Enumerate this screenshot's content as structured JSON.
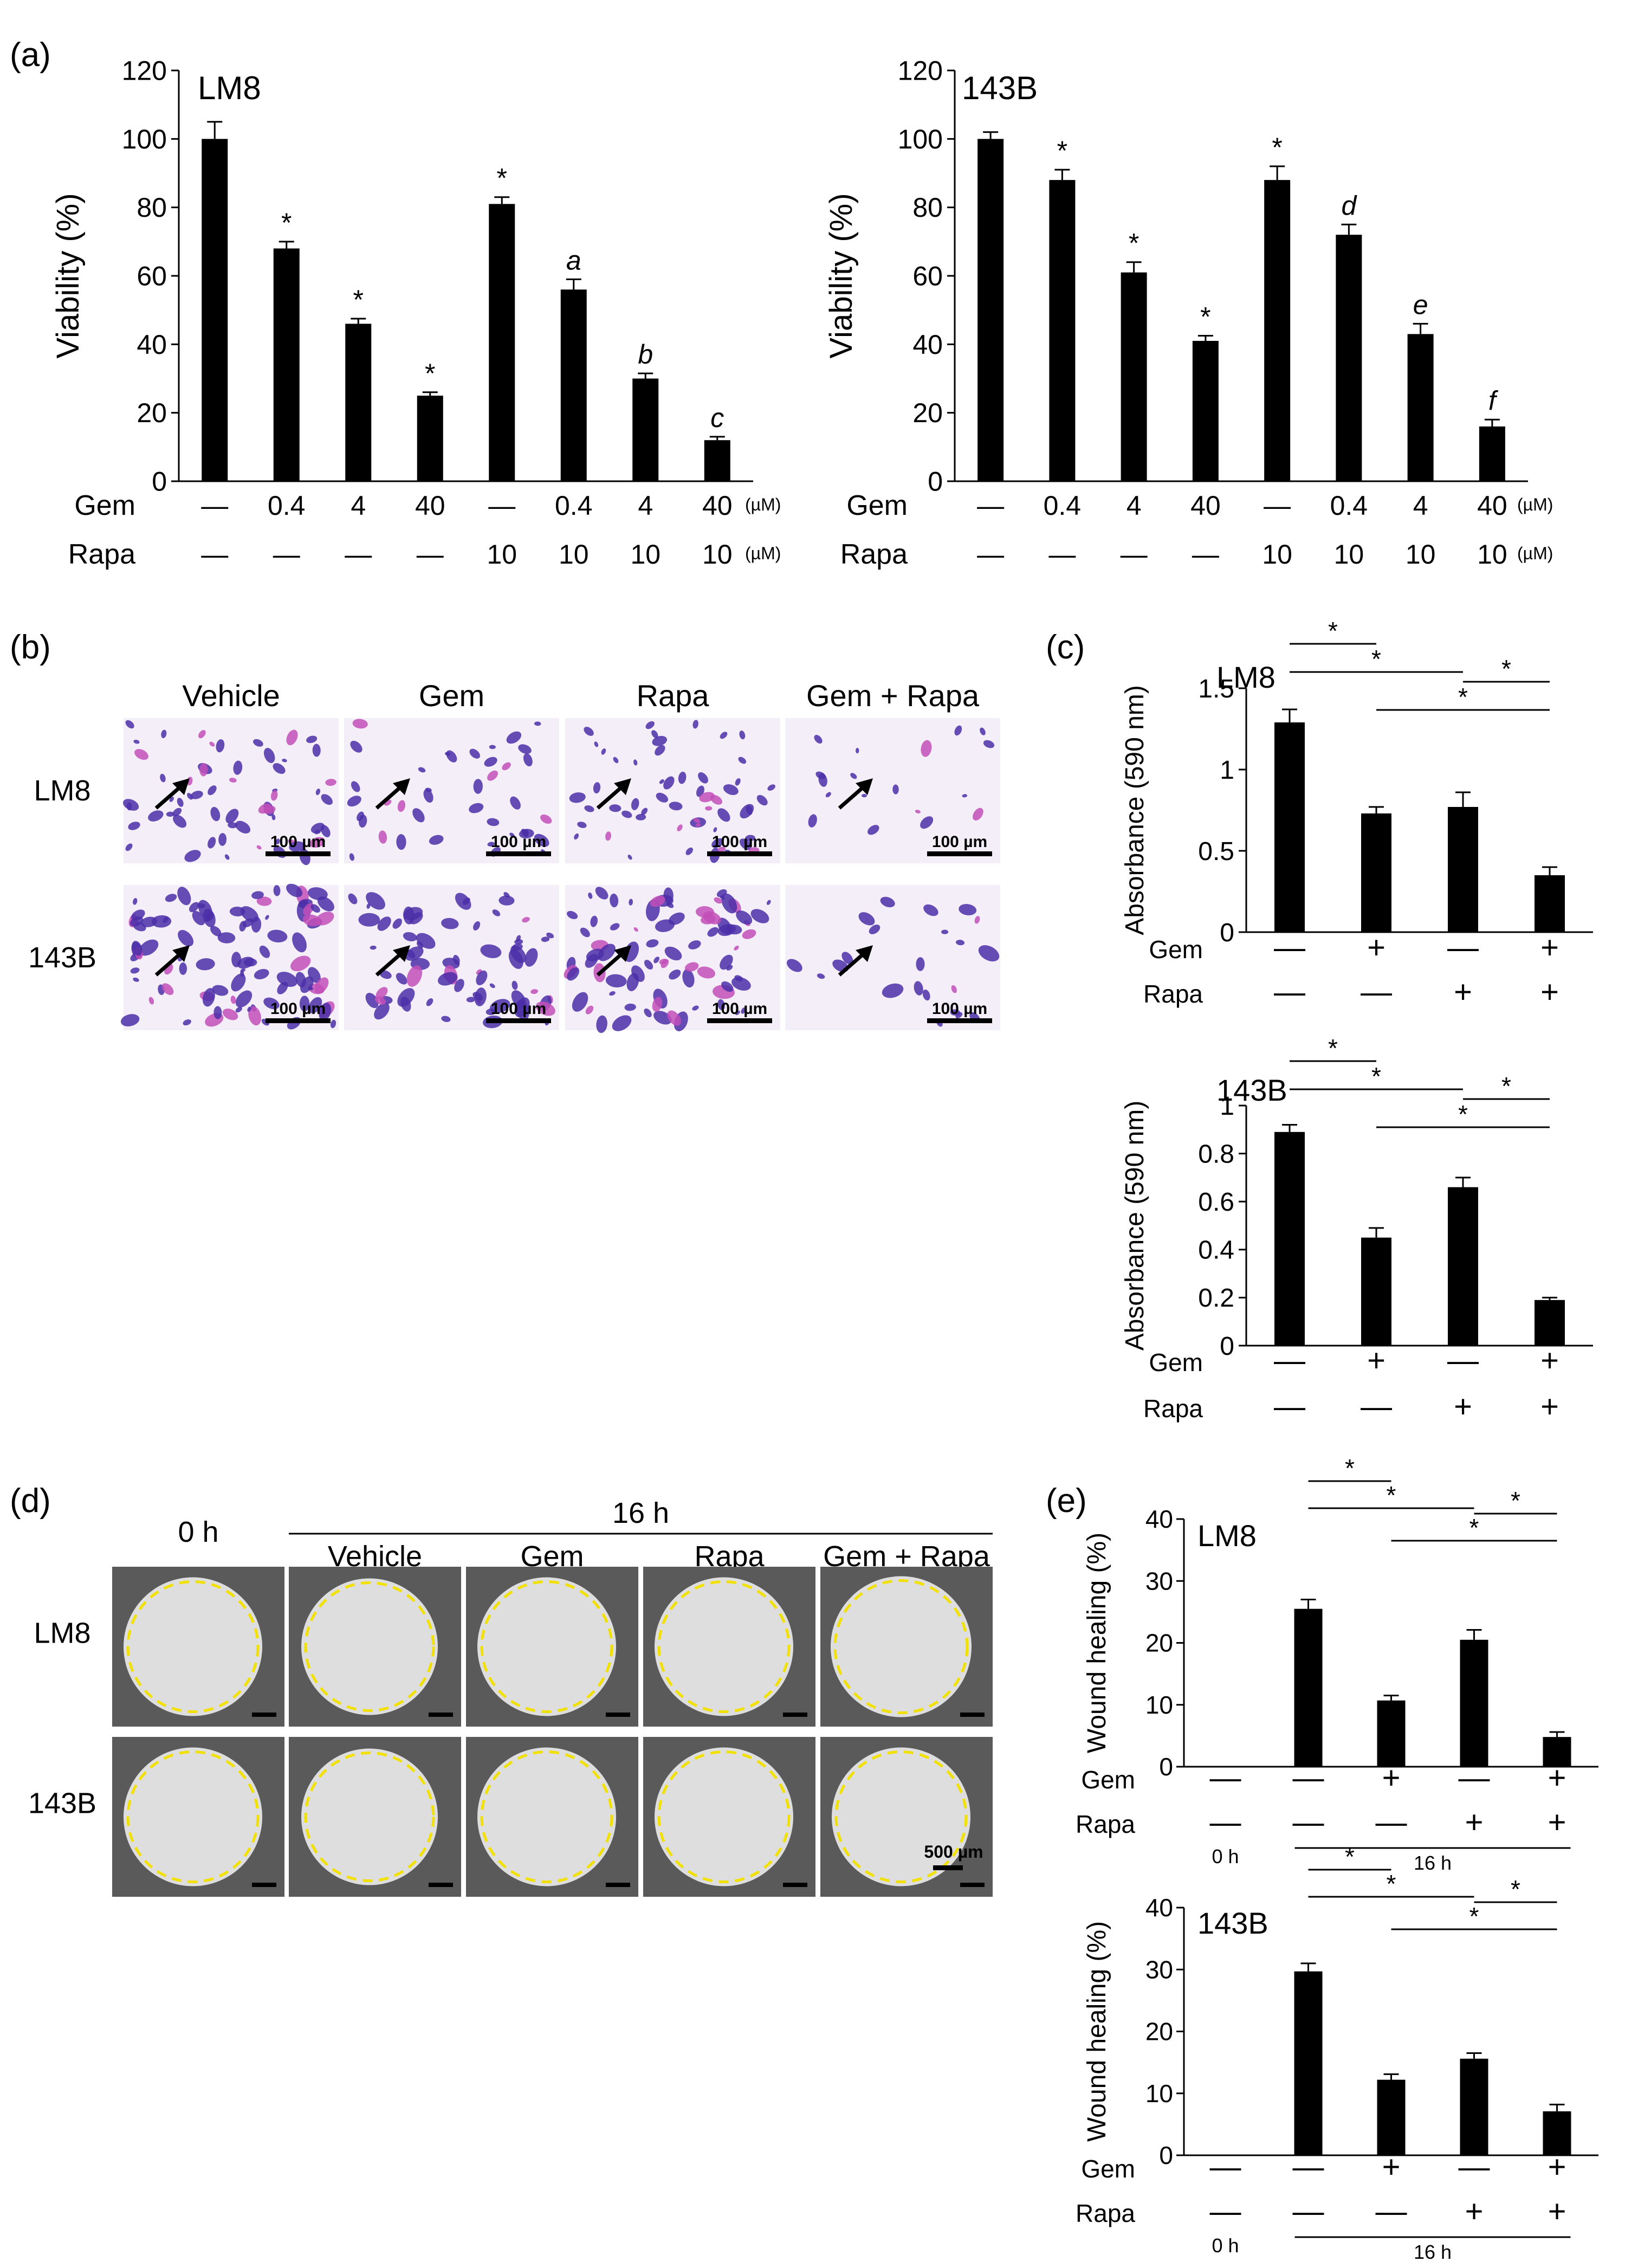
{
  "panels": {
    "a": "(a)",
    "b": "(b)",
    "c": "(c)",
    "d": "(d)",
    "e": "(e)"
  },
  "micrograph": {
    "columns": [
      "Vehicle",
      "Gem",
      "Rapa",
      "Gem + Rapa"
    ],
    "rows": [
      "LM8",
      "143B"
    ],
    "scale_label": "100 µm",
    "colors": {
      "background": "#f3eef8",
      "stain": "#4b2fa8",
      "stain_pink": "#c24fb8",
      "arrow": "#000000"
    }
  },
  "wound": {
    "timepoint_0h": "0 h",
    "timepoint_16h": "16 h",
    "columns": [
      "Vehicle",
      "Gem",
      "Rapa",
      "Gem + Rapa"
    ],
    "rows": [
      "LM8",
      "143B"
    ],
    "scale_label": "500 µm",
    "colors": {
      "background": "#5a5a5a",
      "wound": "#e6e6e6",
      "outline": "#f2e100"
    }
  },
  "chart_data": [
    {
      "id": "a-LM8",
      "type": "bar",
      "title": "LM8",
      "ylabel": "Viability (%)",
      "ylim": [
        0,
        120
      ],
      "yticks": [
        0,
        20,
        40,
        60,
        80,
        100,
        120
      ],
      "categories": [
        "1",
        "2",
        "3",
        "4",
        "5",
        "6",
        "7",
        "8"
      ],
      "values": [
        100,
        68,
        46,
        25,
        81,
        56,
        30,
        12
      ],
      "errors": [
        5,
        2,
        1.5,
        1,
        2,
        3,
        1.5,
        1
      ],
      "annotations": [
        "",
        "*",
        "*",
        "*",
        "*",
        "a",
        "b",
        "c"
      ],
      "conditions": [
        {
          "name": "Gem",
          "levels": [
            "—",
            "0.4",
            "4",
            "40",
            "—",
            "0.4",
            "4",
            "40"
          ],
          "unit": "(µM)"
        },
        {
          "name": "Rapa",
          "levels": [
            "—",
            "—",
            "—",
            "—",
            "10",
            "10",
            "10",
            "10"
          ],
          "unit": "(µM)"
        }
      ]
    },
    {
      "id": "a-143B",
      "type": "bar",
      "title": "143B",
      "ylabel": "Viability (%)",
      "ylim": [
        0,
        120
      ],
      "yticks": [
        0,
        20,
        40,
        60,
        80,
        100,
        120
      ],
      "categories": [
        "1",
        "2",
        "3",
        "4",
        "5",
        "6",
        "7",
        "8"
      ],
      "values": [
        100,
        88,
        61,
        41,
        88,
        72,
        43,
        16
      ],
      "errors": [
        2,
        3,
        3,
        1.5,
        4,
        3,
        3,
        2
      ],
      "annotations": [
        "",
        "*",
        "*",
        "*",
        "*",
        "d",
        "e",
        "f"
      ],
      "conditions": [
        {
          "name": "Gem",
          "levels": [
            "—",
            "0.4",
            "4",
            "40",
            "—",
            "0.4",
            "4",
            "40"
          ],
          "unit": "(µM)"
        },
        {
          "name": "Rapa",
          "levels": [
            "—",
            "—",
            "—",
            "—",
            "10",
            "10",
            "10",
            "10"
          ],
          "unit": "(µM)"
        }
      ]
    },
    {
      "id": "c-LM8",
      "type": "bar",
      "title": "LM8",
      "ylabel": "Absorbance (590 nm)",
      "ylim": [
        0,
        1.5
      ],
      "yticks": [
        "0",
        "0.5",
        "1",
        "1.5"
      ],
      "categories": [
        "1",
        "2",
        "3",
        "4"
      ],
      "values": [
        1.29,
        0.73,
        0.77,
        0.35
      ],
      "errors": [
        0.08,
        0.04,
        0.09,
        0.05
      ],
      "conditions": [
        {
          "name": "Gem",
          "levels": [
            "—",
            "+",
            "—",
            "+"
          ]
        },
        {
          "name": "Rapa",
          "levels": [
            "—",
            "—",
            "+",
            "+"
          ]
        }
      ],
      "significance": [
        {
          "from": 1,
          "to": 2,
          "label": "*"
        },
        {
          "from": 1,
          "to": 3,
          "label": "*"
        },
        {
          "from": 3,
          "to": 4,
          "label": "*"
        },
        {
          "from": 2,
          "to": 4,
          "label": "*"
        }
      ]
    },
    {
      "id": "c-143B",
      "type": "bar",
      "title": "143B",
      "ylabel": "Absorbance (590 nm)",
      "ylim": [
        0,
        1
      ],
      "yticks": [
        "0",
        "0.2",
        "0.4",
        "0.6",
        "0.8",
        "1"
      ],
      "categories": [
        "1",
        "2",
        "3",
        "4"
      ],
      "values": [
        0.89,
        0.45,
        0.66,
        0.19
      ],
      "errors": [
        0.03,
        0.04,
        0.04,
        0.01
      ],
      "conditions": [
        {
          "name": "Gem",
          "levels": [
            "—",
            "+",
            "—",
            "+"
          ]
        },
        {
          "name": "Rapa",
          "levels": [
            "—",
            "—",
            "+",
            "+"
          ]
        }
      ],
      "significance": [
        {
          "from": 1,
          "to": 2,
          "label": "*"
        },
        {
          "from": 1,
          "to": 3,
          "label": "*"
        },
        {
          "from": 3,
          "to": 4,
          "label": "*"
        },
        {
          "from": 2,
          "to": 4,
          "label": "*"
        }
      ]
    },
    {
      "id": "e-LM8",
      "type": "bar",
      "title": "LM8",
      "ylabel": "Wound healing (%)",
      "ylim": [
        0,
        40
      ],
      "yticks": [
        0,
        10,
        20,
        30,
        40
      ],
      "categories": [
        "1",
        "2",
        "3",
        "4",
        "5"
      ],
      "values": [
        null,
        25.5,
        10.7,
        20.5,
        4.8
      ],
      "errors": [
        null,
        1.5,
        0.8,
        1.6,
        0.8
      ],
      "conditions": [
        {
          "name": "Gem",
          "levels": [
            "—",
            "—",
            "+",
            "—",
            "+"
          ]
        },
        {
          "name": "Rapa",
          "levels": [
            "—",
            "—",
            "—",
            "+",
            "+"
          ]
        }
      ],
      "time_groups": [
        {
          "label": "0 h",
          "from": 1,
          "to": 1
        },
        {
          "label": "16 h",
          "from": 2,
          "to": 5
        }
      ],
      "significance": [
        {
          "from": 2,
          "to": 3,
          "label": "*"
        },
        {
          "from": 2,
          "to": 4,
          "label": "*"
        },
        {
          "from": 4,
          "to": 5,
          "label": "*"
        },
        {
          "from": 3,
          "to": 5,
          "label": "*"
        }
      ]
    },
    {
      "id": "e-143B",
      "type": "bar",
      "title": "143B",
      "ylabel": "Wound healing (%)",
      "ylim": [
        0,
        40
      ],
      "yticks": [
        0,
        10,
        20,
        30,
        40
      ],
      "categories": [
        "1",
        "2",
        "3",
        "4",
        "5"
      ],
      "values": [
        null,
        29.7,
        12.2,
        15.6,
        7.1
      ],
      "errors": [
        null,
        1.3,
        0.9,
        0.9,
        1.1
      ],
      "conditions": [
        {
          "name": "Gem",
          "levels": [
            "—",
            "—",
            "+",
            "—",
            "+"
          ]
        },
        {
          "name": "Rapa",
          "levels": [
            "—",
            "—",
            "—",
            "+",
            "+"
          ]
        }
      ],
      "time_groups": [
        {
          "label": "0 h",
          "from": 1,
          "to": 1
        },
        {
          "label": "16 h",
          "from": 2,
          "to": 5
        }
      ],
      "significance": [
        {
          "from": 2,
          "to": 3,
          "label": "*"
        },
        {
          "from": 2,
          "to": 4,
          "label": "*"
        },
        {
          "from": 4,
          "to": 5,
          "label": "*"
        },
        {
          "from": 3,
          "to": 5,
          "label": "*"
        }
      ]
    }
  ]
}
